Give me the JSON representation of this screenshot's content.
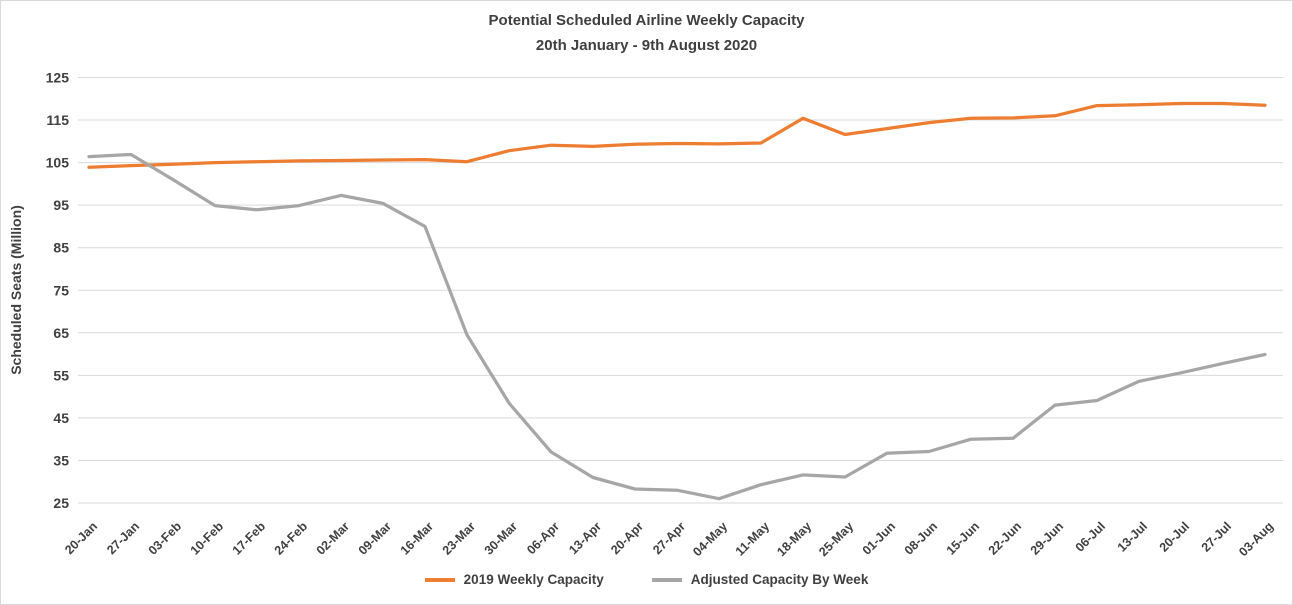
{
  "title": {
    "line1": "Potential Scheduled Airline Weekly Capacity",
    "line2": "20th January - 9th August 2020"
  },
  "y_axis": {
    "title": "Scheduled Seats (Million)",
    "tick_labels": [
      "125",
      "115",
      "105",
      "95",
      "85",
      "75",
      "65",
      "55",
      "45",
      "35",
      "25"
    ]
  },
  "legend": {
    "items": [
      {
        "label": "2019 Weekly Capacity",
        "color": "#ED7D31"
      },
      {
        "label": "Adjusted Capacity By Week",
        "color": "#A6A6A6"
      }
    ]
  },
  "colors": {
    "orange": "#ED7D31",
    "gray": "#A6A6A6",
    "gridline": "#D9D9D9",
    "axis_text": "#404040",
    "title_text": "#3F3F3F",
    "border": "#D9D9D9",
    "background": "#FFFFFF"
  },
  "chart_data": {
    "type": "line",
    "title": "Potential Scheduled Airline Weekly Capacity",
    "subtitle": "20th January - 9th August 2020",
    "xlabel": "",
    "ylabel": "Scheduled Seats (Million)",
    "ylim": [
      25,
      125
    ],
    "ytick_step": 10,
    "grid": true,
    "legend_position": "bottom",
    "markers": false,
    "categories": [
      "20-Jan",
      "27-Jan",
      "03-Feb",
      "10-Feb",
      "17-Feb",
      "24-Feb",
      "02-Mar",
      "09-Mar",
      "16-Mar",
      "23-Mar",
      "30-Mar",
      "06-Apr",
      "13-Apr",
      "20-Apr",
      "27-Apr",
      "04-May",
      "11-May",
      "18-May",
      "25-May",
      "01-Jun",
      "08-Jun",
      "15-Jun",
      "22-Jun",
      "29-Jun",
      "06-Jul",
      "13-Jul",
      "20-Jul",
      "27-Jul",
      "03-Aug"
    ],
    "series": [
      {
        "name": "2019 Weekly Capacity",
        "color": "#ED7D31",
        "values": [
          103.9,
          104.3,
          104.6,
          105.0,
          105.2,
          105.4,
          105.5,
          105.6,
          105.7,
          105.2,
          107.8,
          109.1,
          108.8,
          109.3,
          109.5,
          109.4,
          109.6,
          115.4,
          111.6,
          113.0,
          114.4,
          115.4,
          115.5,
          116.0,
          118.4,
          118.6,
          118.9,
          118.9,
          118.5
        ]
      },
      {
        "name": "Adjusted Capacity By Week",
        "color": "#A6A6A6",
        "values": [
          106.4,
          106.9,
          101.0,
          94.9,
          93.9,
          94.9,
          97.3,
          95.4,
          90.0,
          64.5,
          48.5,
          37.0,
          31.0,
          28.3,
          28.0,
          26.0,
          29.3,
          31.6,
          31.1,
          36.7,
          37.1,
          40.0,
          40.2,
          48.0,
          49.1,
          53.6,
          55.6,
          57.8,
          59.9
        ]
      }
    ]
  }
}
